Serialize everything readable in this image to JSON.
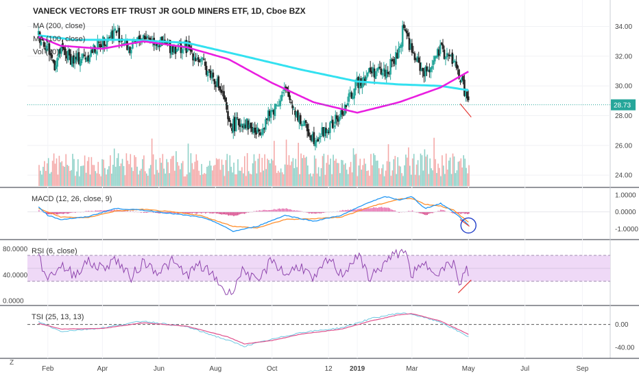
{
  "header": {
    "symbol_title": "VANECK VECTORS ETF TRUST JR GOLD MINERS ETF, 1D, Cboe BZX",
    "ma200_label": "MA (200, close)",
    "ma100_label": "MA (100, close)",
    "vol_label": "Vol (20)"
  },
  "price_tag": "28.73",
  "bottom_left_label": "Z",
  "colors": {
    "up": "#26a69a",
    "down": "#ef5350",
    "ma200": "#33e1f0",
    "ma100": "#e91ee0",
    "macd_line": "#2196f3",
    "signal_line": "#ff8f2e",
    "rsi_line": "#8e44ad",
    "rsi_band": "#efd9f7",
    "tsi_line": "#6ec6e0",
    "tsi_signal": "#e0508c",
    "annotation": "#e53935",
    "circle": "#1e3cc8"
  },
  "chart_data": [
    {
      "type": "candlestick",
      "title": "VANECK VECTORS ETF TRUST JR GOLD MINERS ETF, 1D, Cboe BZX",
      "x_ticks": [
        "Feb",
        "Apr",
        "Jun",
        "Aug",
        "Oct",
        "12",
        "2019",
        "Mar",
        "May",
        "Jul",
        "Sep"
      ],
      "y_ticks": [
        "34.00",
        "32.00",
        "30.00",
        "28.00",
        "26.00",
        "24.00"
      ],
      "ylim": [
        23.5,
        35.5
      ],
      "last_price": 28.73,
      "price_path": [
        [
          "2018-01-22",
          33.4
        ],
        [
          "2018-02-01",
          32.6
        ],
        [
          "2018-02-08",
          31.4
        ],
        [
          "2018-02-15",
          32.4
        ],
        [
          "2018-03-01",
          31.7
        ],
        [
          "2018-03-15",
          32.0
        ],
        [
          "2018-04-01",
          33.0
        ],
        [
          "2018-04-15",
          33.7
        ],
        [
          "2018-05-01",
          32.4
        ],
        [
          "2018-05-15",
          33.4
        ],
        [
          "2018-06-01",
          32.9
        ],
        [
          "2018-06-15",
          32.6
        ],
        [
          "2018-07-01",
          32.6
        ],
        [
          "2018-07-15",
          31.7
        ],
        [
          "2018-08-01",
          30.4
        ],
        [
          "2018-08-10",
          29.2
        ],
        [
          "2018-08-15",
          27.3
        ],
        [
          "2018-09-01",
          27.6
        ],
        [
          "2018-09-15",
          26.8
        ],
        [
          "2018-10-01",
          28.3
        ],
        [
          "2018-10-15",
          29.7
        ],
        [
          "2018-11-01",
          27.6
        ],
        [
          "2018-11-15",
          26.5
        ],
        [
          "2018-12-01",
          27.1
        ],
        [
          "2018-12-15",
          28.1
        ],
        [
          "2019-01-01",
          30.2
        ],
        [
          "2019-01-15",
          31.0
        ],
        [
          "2019-02-01",
          30.9
        ],
        [
          "2019-02-15",
          32.2
        ],
        [
          "2019-02-20",
          34.2
        ],
        [
          "2019-03-01",
          32.2
        ],
        [
          "2019-03-15",
          30.8
        ],
        [
          "2019-04-01",
          32.4
        ],
        [
          "2019-04-15",
          31.7
        ],
        [
          "2019-04-25",
          30.0
        ],
        [
          "2019-05-02",
          28.73
        ]
      ],
      "ma200_path": [
        [
          "2018-01-22",
          33.4
        ],
        [
          "2018-03-01",
          33.1
        ],
        [
          "2018-05-01",
          33.1
        ],
        [
          "2018-07-01",
          32.9
        ],
        [
          "2018-09-01",
          32.0
        ],
        [
          "2018-11-01",
          31.1
        ],
        [
          "2019-01-01",
          30.3
        ],
        [
          "2019-02-15",
          30.1
        ],
        [
          "2019-04-01",
          30.0
        ],
        [
          "2019-05-02",
          29.7
        ]
      ],
      "ma100_path": [
        [
          "2018-01-22",
          33.3
        ],
        [
          "2018-02-15",
          32.7
        ],
        [
          "2018-04-01",
          32.5
        ],
        [
          "2018-05-15",
          33.0
        ],
        [
          "2018-07-01",
          32.6
        ],
        [
          "2018-08-15",
          31.8
        ],
        [
          "2018-10-01",
          30.2
        ],
        [
          "2018-11-15",
          28.9
        ],
        [
          "2019-01-01",
          28.2
        ],
        [
          "2019-02-15",
          28.9
        ],
        [
          "2019-04-01",
          29.9
        ],
        [
          "2019-05-02",
          31.0
        ]
      ],
      "trendline": [
        [
          "2019-04-22",
          28.8
        ],
        [
          "2019-05-04",
          27.9
        ]
      ]
    },
    {
      "type": "line",
      "title": "MACD (12, 26, close, 9)",
      "y_ticks": [
        "1.0000",
        "0.0000",
        "-1.0000"
      ],
      "ylim": [
        -1.35,
        1.2
      ],
      "series": [
        {
          "values": [
            [
              "2018-01-22",
              0.3
            ],
            [
              "2018-02-01",
              -0.2
            ],
            [
              "2018-02-15",
              -0.45
            ],
            [
              "2018-03-15",
              -0.3
            ],
            [
              "2018-04-15",
              0.2
            ],
            [
              "2018-05-15",
              0.1
            ],
            [
              "2018-06-15",
              -0.1
            ],
            [
              "2018-07-15",
              -0.3
            ],
            [
              "2018-08-01",
              -0.6
            ],
            [
              "2018-08-20",
              -1.15
            ],
            [
              "2018-09-15",
              -0.85
            ],
            [
              "2018-10-15",
              -0.2
            ],
            [
              "2018-11-15",
              -0.55
            ],
            [
              "2018-12-15",
              -0.2
            ],
            [
              "2019-01-15",
              0.6
            ],
            [
              "2019-02-01",
              0.9
            ],
            [
              "2019-02-15",
              0.7
            ],
            [
              "2019-03-01",
              0.9
            ],
            [
              "2019-03-15",
              0.2
            ],
            [
              "2019-04-01",
              0.5
            ],
            [
              "2019-04-15",
              0.0
            ],
            [
              "2019-05-02",
              -0.8
            ]
          ]
        },
        {
          "values": [
            [
              "2018-01-22",
              0.2
            ],
            [
              "2018-02-15",
              -0.3
            ],
            [
              "2018-03-15",
              -0.35
            ],
            [
              "2018-04-15",
              0.05
            ],
            [
              "2018-05-15",
              0.15
            ],
            [
              "2018-06-15",
              0.0
            ],
            [
              "2018-07-15",
              -0.2
            ],
            [
              "2018-08-20",
              -0.85
            ],
            [
              "2018-09-15",
              -0.95
            ],
            [
              "2018-10-15",
              -0.45
            ],
            [
              "2018-11-15",
              -0.4
            ],
            [
              "2018-12-15",
              -0.3
            ],
            [
              "2019-01-15",
              0.3
            ],
            [
              "2019-02-15",
              0.75
            ],
            [
              "2019-03-01",
              0.8
            ],
            [
              "2019-03-15",
              0.45
            ],
            [
              "2019-04-01",
              0.35
            ],
            [
              "2019-04-15",
              0.1
            ],
            [
              "2019-05-02",
              -0.65
            ]
          ]
        }
      ],
      "trendline": [
        [
          "2019-04-22",
          -0.45
        ],
        [
          "2019-05-02",
          -0.85
        ]
      ]
    },
    {
      "type": "line",
      "title": "RSI (6, close)",
      "y_ticks": [
        "80.0000",
        "40.0000",
        "0.0000"
      ],
      "ylim": [
        0,
        88
      ],
      "band": [
        30,
        70
      ],
      "midline": 50,
      "series": [
        {
          "values": [
            [
              "2018-01-22",
              65
            ],
            [
              "2018-02-01",
              35
            ],
            [
              "2018-02-15",
              55
            ],
            [
              "2018-03-01",
              40
            ],
            [
              "2018-03-15",
              60
            ],
            [
              "2018-04-01",
              50
            ],
            [
              "2018-04-15",
              65
            ],
            [
              "2018-05-01",
              35
            ],
            [
              "2018-05-15",
              60
            ],
            [
              "2018-06-01",
              45
            ],
            [
              "2018-06-15",
              60
            ],
            [
              "2018-07-01",
              40
            ],
            [
              "2018-07-15",
              55
            ],
            [
              "2018-08-01",
              35
            ],
            [
              "2018-08-15",
              8
            ],
            [
              "2018-09-01",
              50
            ],
            [
              "2018-09-15",
              25
            ],
            [
              "2018-10-01",
              65
            ],
            [
              "2018-10-15",
              40
            ],
            [
              "2018-11-01",
              55
            ],
            [
              "2018-11-15",
              30
            ],
            [
              "2018-12-01",
              65
            ],
            [
              "2018-12-15",
              40
            ],
            [
              "2019-01-01",
              70
            ],
            [
              "2019-01-15",
              35
            ],
            [
              "2019-02-01",
              60
            ],
            [
              "2019-02-20",
              80
            ],
            [
              "2019-03-01",
              40
            ],
            [
              "2019-03-15",
              55
            ],
            [
              "2019-04-01",
              45
            ],
            [
              "2019-04-15",
              60
            ],
            [
              "2019-04-22",
              15
            ],
            [
              "2019-04-28",
              55
            ],
            [
              "2019-05-02",
              35
            ]
          ]
        }
      ],
      "trendline": [
        [
          "2019-04-20",
          12
        ],
        [
          "2019-05-04",
          32
        ]
      ]
    },
    {
      "type": "line",
      "title": "TSI (25, 13, 13)",
      "y_ticks": [
        "0.00",
        "-40.00"
      ],
      "ylim": [
        -52,
        26
      ],
      "midline": 0,
      "series": [
        {
          "values": [
            [
              "2018-01-22",
              5
            ],
            [
              "2018-02-15",
              -12
            ],
            [
              "2018-04-01",
              -6
            ],
            [
              "2018-05-15",
              6
            ],
            [
              "2018-07-01",
              -4
            ],
            [
              "2018-08-15",
              -28
            ],
            [
              "2018-09-01",
              -38
            ],
            [
              "2018-10-01",
              -26
            ],
            [
              "2018-11-01",
              -14
            ],
            [
              "2018-12-15",
              -6
            ],
            [
              "2019-01-15",
              10
            ],
            [
              "2019-02-15",
              20
            ],
            [
              "2019-03-01",
              18
            ],
            [
              "2019-04-01",
              4
            ],
            [
              "2019-05-02",
              -22
            ]
          ]
        },
        {
          "values": [
            [
              "2018-01-22",
              2
            ],
            [
              "2018-02-15",
              -8
            ],
            [
              "2018-04-01",
              -7
            ],
            [
              "2018-05-15",
              3
            ],
            [
              "2018-07-01",
              -3
            ],
            [
              "2018-08-15",
              -22
            ],
            [
              "2018-09-01",
              -34
            ],
            [
              "2018-10-01",
              -28
            ],
            [
              "2018-11-01",
              -17
            ],
            [
              "2018-12-15",
              -8
            ],
            [
              "2019-01-15",
              6
            ],
            [
              "2019-02-15",
              17
            ],
            [
              "2019-03-01",
              19
            ],
            [
              "2019-04-01",
              6
            ],
            [
              "2019-05-02",
              -18
            ]
          ]
        }
      ]
    }
  ]
}
